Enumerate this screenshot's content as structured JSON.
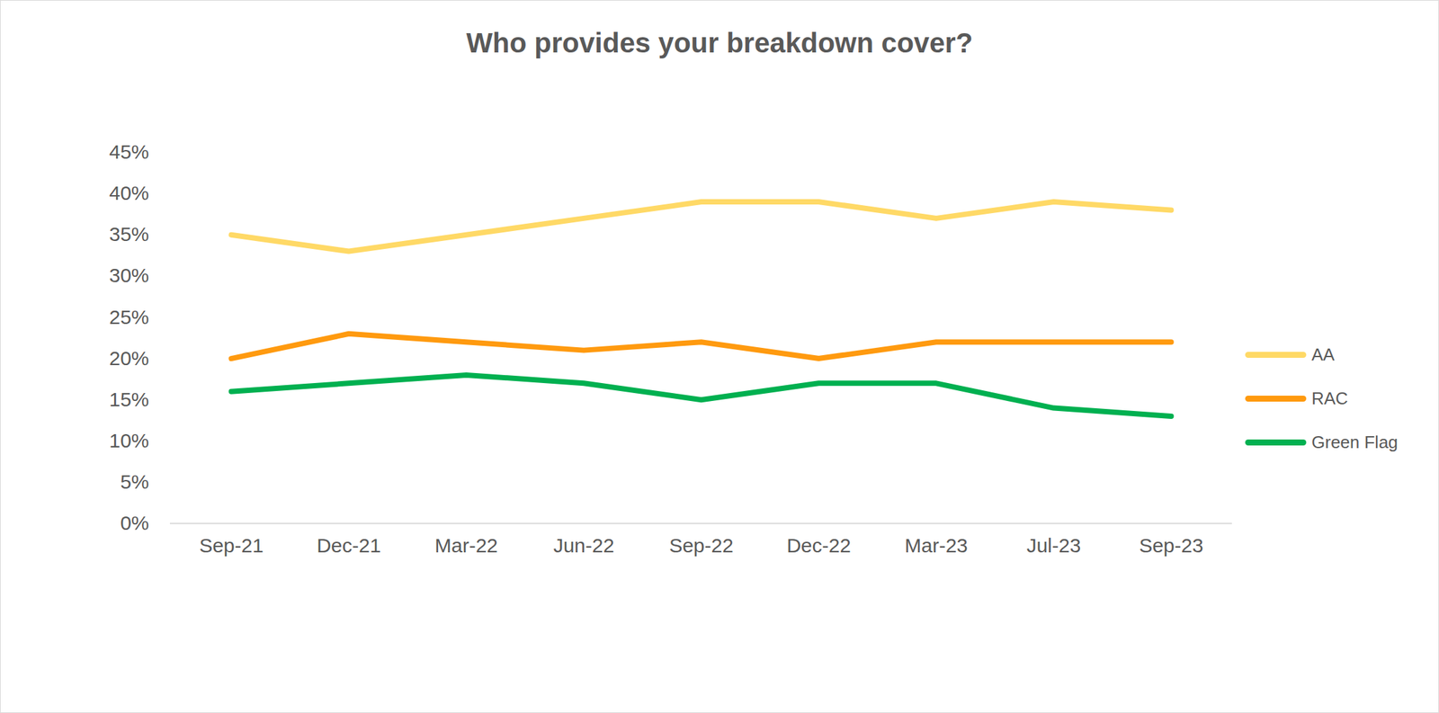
{
  "chart_data": {
    "type": "line",
    "title": "Who provides your breakdown cover?",
    "categories": [
      "Sep-21",
      "Dec-21",
      "Mar-22",
      "Jun-22",
      "Sep-22",
      "Dec-22",
      "Mar-23",
      "Jul-23",
      "Sep-23"
    ],
    "series": [
      {
        "name": "AA",
        "color": "#ffd966",
        "values": [
          35,
          33,
          35,
          37,
          39,
          39,
          37,
          39,
          38
        ]
      },
      {
        "name": "RAC",
        "color": "#ff9a0f",
        "values": [
          20,
          23,
          22,
          21,
          22,
          20,
          22,
          22,
          22
        ]
      },
      {
        "name": "Green Flag",
        "color": "#00b050",
        "values": [
          16,
          17,
          18,
          17,
          15,
          17,
          17,
          14,
          13
        ]
      }
    ],
    "ylim": [
      0,
      45
    ],
    "yticks": [
      {
        "value": 0,
        "label": "0%"
      },
      {
        "value": 5,
        "label": "5%"
      },
      {
        "value": 10,
        "label": "10%"
      },
      {
        "value": 15,
        "label": "15%"
      },
      {
        "value": 20,
        "label": "20%"
      },
      {
        "value": 25,
        "label": "25%"
      },
      {
        "value": 30,
        "label": "30%"
      },
      {
        "value": 35,
        "label": "35%"
      },
      {
        "value": 40,
        "label": "40%"
      },
      {
        "value": 45,
        "label": "45%"
      }
    ],
    "grid": false,
    "legend": "right"
  }
}
